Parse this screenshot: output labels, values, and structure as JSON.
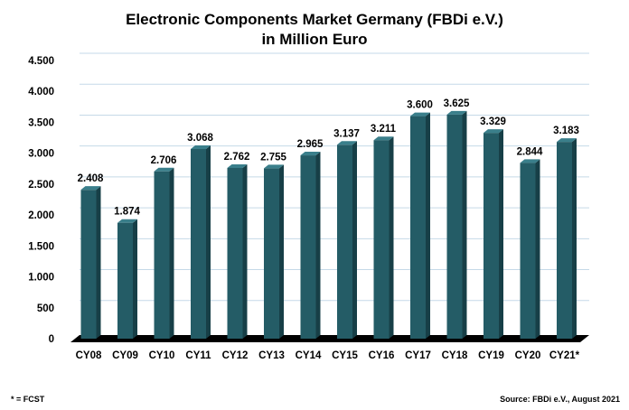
{
  "chart_data": {
    "type": "bar",
    "title": "Electronic Components Market Germany (FBDi e.V.)",
    "subtitle": "in Million Euro",
    "categories": [
      "CY08",
      "CY09",
      "CY10",
      "CY11",
      "CY12",
      "CY13",
      "CY14",
      "CY15",
      "CY16",
      "CY17",
      "CY18",
      "CY19",
      "CY20",
      "CY21*"
    ],
    "values": [
      2408,
      1874,
      2706,
      3068,
      2762,
      2755,
      2965,
      3137,
      3211,
      3600,
      3625,
      3329,
      2844,
      3183
    ],
    "value_labels": [
      "2.408",
      "1.874",
      "2.706",
      "3.068",
      "2.762",
      "2.755",
      "2.965",
      "3.137",
      "3.211",
      "3.600",
      "3.625",
      "3.329",
      "2.844",
      "3.183"
    ],
    "y_ticks": [
      0,
      500,
      1000,
      1500,
      2000,
      2500,
      3000,
      3500,
      4000,
      4500
    ],
    "y_tick_labels": [
      "0",
      "500",
      "1.000",
      "1.500",
      "2.000",
      "2.500",
      "3.000",
      "3.500",
      "4.000",
      "4.500"
    ],
    "xlabel": "",
    "ylabel": "",
    "ylim": [
      0,
      4500
    ],
    "grid": true,
    "legend": "none",
    "style": "3d-bars",
    "colors": {
      "bar_front": "#245c66",
      "bar_side": "#173f47",
      "bar_top": "#3a7f8b",
      "grid": "#c5d9e8",
      "floor": "#000000"
    },
    "footnote": "* = FCST",
    "source": "Source: FBDi e.V., August 2021"
  }
}
